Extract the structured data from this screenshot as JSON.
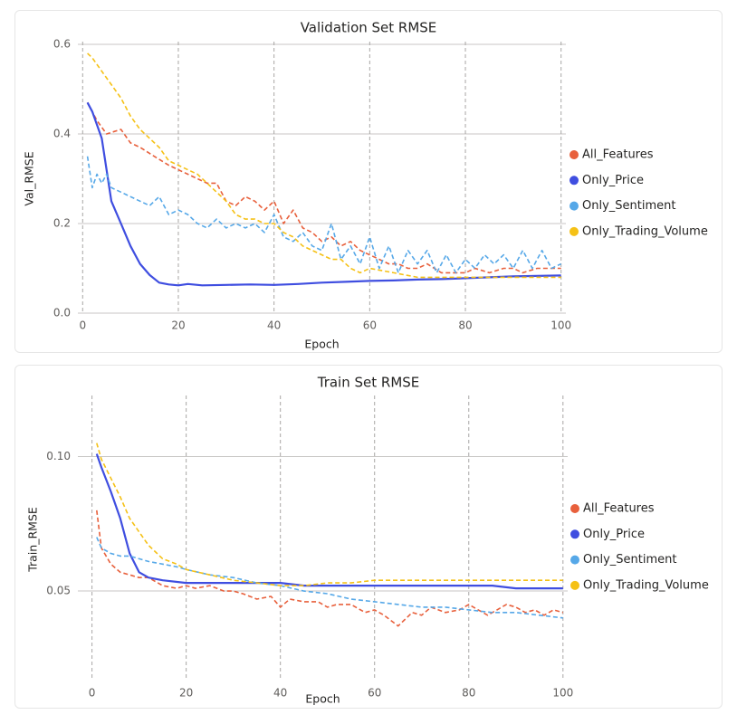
{
  "colors": {
    "All_Features": "#e8603c",
    "Only_Price": "#3f4ee0",
    "Only_Sentiment": "#56a8e8",
    "Only_Trading_Volume": "#f5c116"
  },
  "chart_data": [
    {
      "type": "line",
      "title": "Validation Set RMSE",
      "xlabel": "Epoch",
      "ylabel": "Val_RMSE",
      "xlim": [
        -1,
        101
      ],
      "ylim": [
        0,
        0.6
      ],
      "x_ticks": [
        0,
        20,
        40,
        60,
        80,
        100
      ],
      "y_ticks": [
        0.0,
        0.2,
        0.4,
        0.6
      ],
      "y_tick_labels": [
        "0.0",
        "0.2",
        "0.4",
        "0.6"
      ],
      "legend": "right",
      "grid": true,
      "series": [
        {
          "name": "All_Features",
          "dash": true,
          "x": [
            1,
            3,
            5,
            8,
            10,
            12,
            15,
            18,
            20,
            22,
            24,
            26,
            28,
            30,
            32,
            34,
            36,
            38,
            40,
            42,
            44,
            46,
            48,
            50,
            52,
            54,
            56,
            58,
            60,
            62,
            64,
            66,
            68,
            70,
            72,
            75,
            78,
            80,
            82,
            85,
            88,
            90,
            92,
            95,
            98,
            100
          ],
          "y": [
            0.47,
            0.43,
            0.4,
            0.41,
            0.38,
            0.37,
            0.35,
            0.33,
            0.32,
            0.31,
            0.3,
            0.29,
            0.29,
            0.25,
            0.24,
            0.26,
            0.25,
            0.23,
            0.25,
            0.2,
            0.23,
            0.19,
            0.18,
            0.16,
            0.17,
            0.15,
            0.16,
            0.14,
            0.13,
            0.12,
            0.11,
            0.11,
            0.1,
            0.1,
            0.11,
            0.09,
            0.09,
            0.09,
            0.1,
            0.09,
            0.1,
            0.1,
            0.09,
            0.1,
            0.1,
            0.1
          ]
        },
        {
          "name": "Only_Price",
          "dash": false,
          "x": [
            1,
            2,
            4,
            6,
            8,
            10,
            12,
            14,
            16,
            18,
            20,
            22,
            25,
            30,
            35,
            40,
            45,
            50,
            55,
            60,
            65,
            70,
            75,
            80,
            85,
            90,
            95,
            100
          ],
          "y": [
            0.47,
            0.45,
            0.39,
            0.25,
            0.2,
            0.15,
            0.11,
            0.085,
            0.068,
            0.064,
            0.062,
            0.065,
            0.062,
            0.063,
            0.064,
            0.063,
            0.065,
            0.068,
            0.07,
            0.072,
            0.073,
            0.075,
            0.076,
            0.078,
            0.08,
            0.082,
            0.083,
            0.084
          ]
        },
        {
          "name": "Only_Sentiment",
          "dash": true,
          "x": [
            1,
            2,
            3,
            4,
            5,
            6,
            8,
            10,
            12,
            14,
            16,
            18,
            20,
            22,
            24,
            26,
            28,
            30,
            32,
            34,
            36,
            38,
            40,
            42,
            44,
            46,
            48,
            50,
            52,
            54,
            56,
            58,
            60,
            62,
            64,
            66,
            68,
            70,
            72,
            74,
            76,
            78,
            80,
            82,
            84,
            86,
            88,
            90,
            92,
            94,
            96,
            98,
            100
          ],
          "y": [
            0.35,
            0.28,
            0.31,
            0.29,
            0.31,
            0.28,
            0.27,
            0.26,
            0.25,
            0.24,
            0.26,
            0.22,
            0.23,
            0.22,
            0.2,
            0.19,
            0.21,
            0.19,
            0.2,
            0.19,
            0.2,
            0.18,
            0.22,
            0.17,
            0.16,
            0.18,
            0.15,
            0.14,
            0.2,
            0.12,
            0.15,
            0.11,
            0.17,
            0.1,
            0.15,
            0.09,
            0.14,
            0.11,
            0.14,
            0.09,
            0.13,
            0.09,
            0.12,
            0.1,
            0.13,
            0.11,
            0.13,
            0.1,
            0.14,
            0.1,
            0.14,
            0.1,
            0.11
          ]
        },
        {
          "name": "Only_Trading_Volume",
          "dash": true,
          "x": [
            1,
            2,
            4,
            6,
            8,
            10,
            12,
            14,
            16,
            18,
            20,
            22,
            24,
            26,
            28,
            30,
            32,
            34,
            36,
            38,
            40,
            42,
            44,
            46,
            48,
            50,
            52,
            54,
            56,
            58,
            60,
            65,
            70,
            75,
            80,
            85,
            90,
            95,
            100
          ],
          "y": [
            0.58,
            0.57,
            0.54,
            0.51,
            0.48,
            0.44,
            0.41,
            0.39,
            0.37,
            0.34,
            0.33,
            0.32,
            0.31,
            0.29,
            0.27,
            0.25,
            0.22,
            0.21,
            0.21,
            0.2,
            0.2,
            0.18,
            0.17,
            0.15,
            0.14,
            0.13,
            0.12,
            0.12,
            0.1,
            0.09,
            0.1,
            0.09,
            0.08,
            0.08,
            0.08,
            0.08,
            0.08,
            0.08,
            0.08
          ]
        }
      ]
    },
    {
      "type": "line",
      "title": "Train Set RMSE",
      "xlabel": "Epoch",
      "ylabel": "Train_RMSE",
      "xlim": [
        -3,
        101
      ],
      "ylim": [
        0.0167,
        0.1217
      ],
      "x_ticks": [
        0,
        20,
        40,
        60,
        80,
        100
      ],
      "y_ticks": [
        0.05,
        0.1
      ],
      "y_tick_labels": [
        "0.05",
        "0.10"
      ],
      "legend": "right",
      "grid": true,
      "series": [
        {
          "name": "All_Features",
          "dash": true,
          "x": [
            1,
            2,
            4,
            6,
            8,
            10,
            12,
            15,
            18,
            20,
            22,
            25,
            28,
            30,
            32,
            35,
            38,
            40,
            42,
            45,
            48,
            50,
            52,
            55,
            58,
            60,
            62,
            65,
            68,
            70,
            72,
            75,
            78,
            80,
            82,
            84,
            86,
            88,
            90,
            92,
            94,
            96,
            98,
            100
          ],
          "y": [
            0.08,
            0.066,
            0.06,
            0.057,
            0.056,
            0.055,
            0.055,
            0.052,
            0.051,
            0.052,
            0.051,
            0.052,
            0.05,
            0.05,
            0.049,
            0.047,
            0.048,
            0.044,
            0.047,
            0.046,
            0.046,
            0.044,
            0.045,
            0.045,
            0.042,
            0.043,
            0.041,
            0.037,
            0.042,
            0.041,
            0.044,
            0.042,
            0.043,
            0.045,
            0.043,
            0.041,
            0.043,
            0.045,
            0.044,
            0.042,
            0.043,
            0.041,
            0.043,
            0.042
          ]
        },
        {
          "name": "Only_Price",
          "dash": false,
          "x": [
            1,
            2,
            4,
            6,
            8,
            10,
            12,
            15,
            20,
            25,
            30,
            35,
            40,
            45,
            50,
            55,
            60,
            65,
            70,
            75,
            80,
            85,
            90,
            95,
            100
          ],
          "y": [
            0.101,
            0.096,
            0.087,
            0.077,
            0.064,
            0.057,
            0.055,
            0.054,
            0.053,
            0.053,
            0.053,
            0.053,
            0.053,
            0.052,
            0.052,
            0.052,
            0.052,
            0.052,
            0.052,
            0.052,
            0.052,
            0.052,
            0.051,
            0.051,
            0.051
          ]
        },
        {
          "name": "Only_Sentiment",
          "dash": true,
          "x": [
            1,
            2,
            4,
            6,
            8,
            10,
            12,
            15,
            18,
            20,
            25,
            30,
            35,
            40,
            45,
            50,
            55,
            60,
            65,
            70,
            75,
            80,
            85,
            90,
            95,
            100
          ],
          "y": [
            0.07,
            0.066,
            0.064,
            0.063,
            0.063,
            0.062,
            0.061,
            0.06,
            0.059,
            0.058,
            0.056,
            0.055,
            0.053,
            0.052,
            0.05,
            0.049,
            0.047,
            0.046,
            0.045,
            0.044,
            0.044,
            0.043,
            0.042,
            0.042,
            0.041,
            0.04
          ]
        },
        {
          "name": "Only_Trading_Volume",
          "dash": true,
          "x": [
            1,
            2,
            4,
            6,
            8,
            10,
            12,
            15,
            18,
            20,
            25,
            30,
            35,
            40,
            45,
            50,
            55,
            60,
            65,
            70,
            75,
            80,
            85,
            90,
            95,
            100
          ],
          "y": [
            0.105,
            0.099,
            0.092,
            0.085,
            0.077,
            0.072,
            0.067,
            0.062,
            0.06,
            0.058,
            0.056,
            0.054,
            0.053,
            0.052,
            0.052,
            0.053,
            0.053,
            0.054,
            0.054,
            0.054,
            0.054,
            0.054,
            0.054,
            0.054,
            0.054,
            0.054
          ]
        }
      ]
    }
  ]
}
